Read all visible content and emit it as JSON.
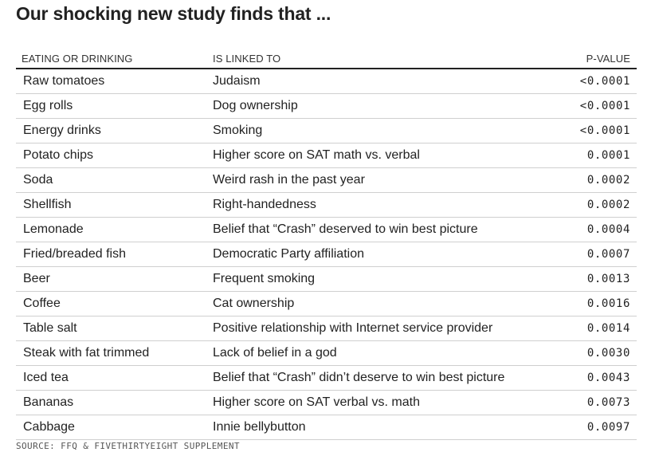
{
  "title": "Our shocking new study finds that ...",
  "source": "SOURCE: FFQ & FIVETHIRTYEIGHT SUPPLEMENT",
  "chart_data": {
    "type": "table",
    "title": "Our shocking new study finds that ...",
    "columns": [
      "EATING OR DRINKING",
      "IS LINKED TO",
      "P-VALUE"
    ],
    "rows": [
      [
        "Raw tomatoes",
        "Judaism",
        "<0.0001"
      ],
      [
        "Egg rolls",
        "Dog ownership",
        "<0.0001"
      ],
      [
        "Energy drinks",
        "Smoking",
        "<0.0001"
      ],
      [
        "Potato chips",
        "Higher score on SAT math vs. verbal",
        "0.0001"
      ],
      [
        "Soda",
        "Weird rash in the past year",
        "0.0002"
      ],
      [
        "Shellfish",
        "Right-handedness",
        "0.0002"
      ],
      [
        "Lemonade",
        "Belief that “Crash” deserved to win best picture",
        "0.0004"
      ],
      [
        "Fried/breaded fish",
        "Democratic Party affiliation",
        "0.0007"
      ],
      [
        "Beer",
        "Frequent smoking",
        "0.0013"
      ],
      [
        "Coffee",
        "Cat ownership",
        "0.0016"
      ],
      [
        "Table salt",
        "Positive relationship with Internet service provider",
        "0.0014"
      ],
      [
        "Steak with fat trimmed",
        "Lack of belief in a god",
        "0.0030"
      ],
      [
        "Iced tea",
        "Belief that “Crash” didn’t deserve to win best picture",
        "0.0043"
      ],
      [
        "Bananas",
        "Higher score on SAT verbal vs. math",
        "0.0073"
      ],
      [
        "Cabbage",
        "Innie bellybutton",
        "0.0097"
      ]
    ]
  }
}
